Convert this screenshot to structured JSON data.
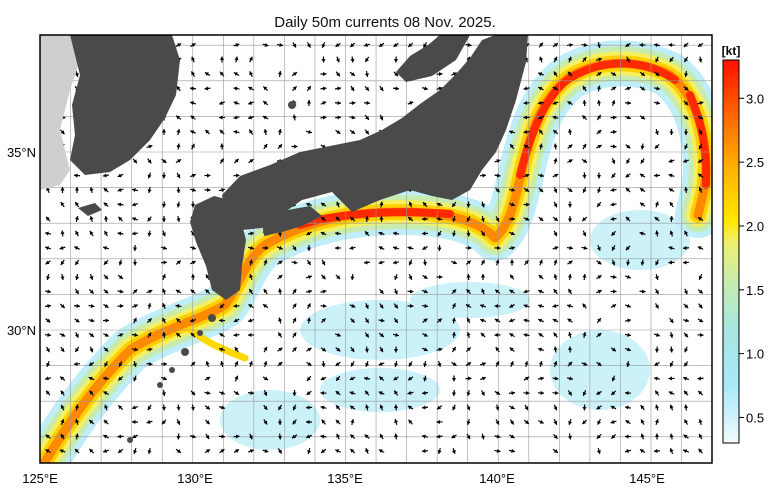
{
  "title": "Daily 50m currents 08 Nov. 2025.",
  "colorbar": {
    "unit": "[kt]",
    "min": 0.3,
    "max": 3.3,
    "ticks": [
      "0.5",
      "1.0",
      "1.5",
      "2.0",
      "2.5",
      "3.0"
    ],
    "colors": [
      "#eef8fc",
      "#bfeefa",
      "#9fe6f2",
      "#b8e8c8",
      "#d8ee90",
      "#f4f060",
      "#ffe000",
      "#ffb000",
      "#ff7a00",
      "#ff4000",
      "#ff1000"
    ]
  },
  "axes": {
    "lat_labels": [
      "35°N",
      "30°N"
    ],
    "lon_labels": [
      "125°E",
      "130°E",
      "135°E",
      "140°E",
      "145°E"
    ]
  },
  "colors": {
    "land": "#4a4a4a",
    "land_far": "#cfcfcf",
    "current_core": "#ff3000",
    "current_fast": "#ffd800",
    "current_slow": "#a8e8f4"
  }
}
